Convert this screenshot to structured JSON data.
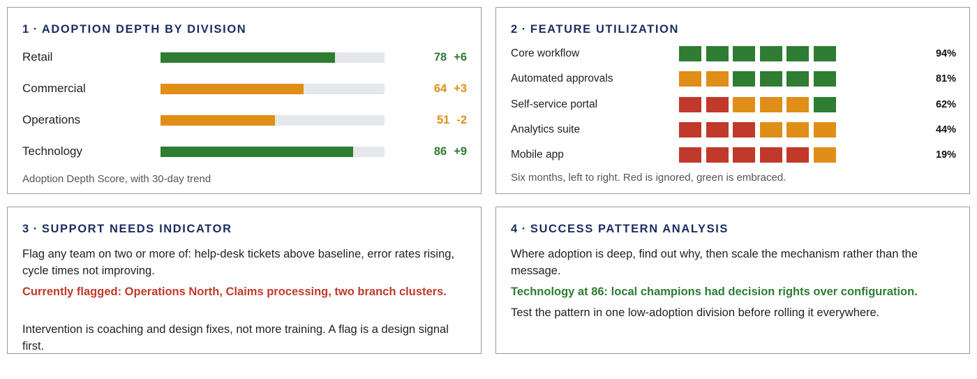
{
  "colors": {
    "green": "#2e7d32",
    "amber": "#e08e17",
    "red": "#c1392b",
    "track": "#e5e7eb",
    "title": "#1b2c5e"
  },
  "panels": {
    "adoption": {
      "number": "1",
      "separator": "·",
      "title": "ADOPTION DEPTH BY DIVISION",
      "caption": "Adoption Depth Score, with 30-day trend"
    },
    "features": {
      "number": "2",
      "separator": "·",
      "title": "FEATURE UTILIZATION",
      "caption": "Six months, left to right. Red is ignored, green is embraced."
    },
    "support": {
      "number": "3",
      "separator": "·",
      "title": "SUPPORT NEEDS INDICATOR",
      "body": "Flag any team on two or more of: help-desk tickets above baseline, error rates rising, cycle times not improving.",
      "highlight": "Currently flagged: Operations North, Claims processing, two branch clusters.",
      "footer": "Intervention is coaching and design fixes, not more training. A flag is a design signal first."
    },
    "success": {
      "number": "4",
      "separator": "·",
      "title": "SUCCESS PATTERN ANALYSIS",
      "body": "Where adoption is deep, find out why, then scale the mechanism rather than the message.",
      "highlight": "Technology at 86: local champions had decision rights over configuration.",
      "footer": "Test the pattern in one low-adoption division before rolling it everywhere."
    }
  },
  "chart_data": [
    {
      "type": "bar",
      "orientation": "horizontal",
      "title": "ADOPTION DEPTH BY DIVISION",
      "categories": [
        "Retail",
        "Commercial",
        "Operations",
        "Technology"
      ],
      "values": [
        78,
        64,
        51,
        86
      ],
      "value_labels": [
        "78",
        "64",
        "51",
        "86"
      ],
      "trends": [
        "+6",
        "+3",
        "-2",
        "+9"
      ],
      "statuses": [
        "green",
        "amber",
        "amber",
        "green"
      ],
      "xlim": [
        0,
        100
      ]
    },
    {
      "type": "heatmap",
      "title": "FEATURE UTILIZATION",
      "rows": [
        "Core workflow",
        "Automated approvals",
        "Self-service portal",
        "Analytics suite",
        "Mobile app"
      ],
      "columns_count": 6,
      "cells": [
        [
          "green",
          "green",
          "green",
          "green",
          "green",
          "green"
        ],
        [
          "amber",
          "amber",
          "green",
          "green",
          "green",
          "green"
        ],
        [
          "red",
          "red",
          "amber",
          "amber",
          "amber",
          "green"
        ],
        [
          "red",
          "red",
          "red",
          "amber",
          "amber",
          "amber"
        ],
        [
          "red",
          "red",
          "red",
          "red",
          "red",
          "amber"
        ]
      ],
      "percent_labels": [
        "94%",
        "81%",
        "62%",
        "44%",
        "19%"
      ],
      "values": [
        94,
        81,
        62,
        44,
        19
      ]
    }
  ]
}
